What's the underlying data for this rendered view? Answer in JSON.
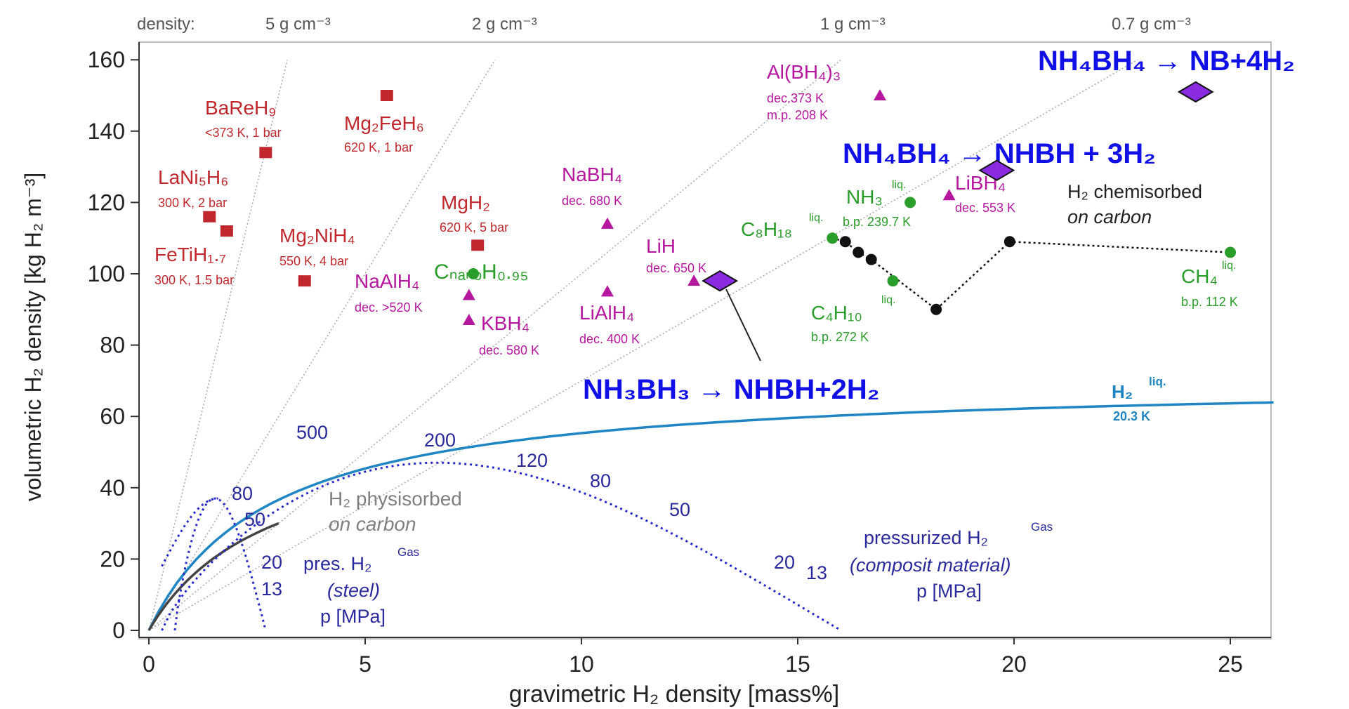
{
  "chart_data": {
    "type": "scatter",
    "xlabel": "gravimetric H₂ density [mass%]",
    "ylabel": "volumetric H₂ density [kg H₂ m⁻³]",
    "xlim": [
      0,
      26
    ],
    "ylim": [
      0,
      160
    ],
    "x_ticks": [
      "0",
      "5",
      "10",
      "15",
      "20",
      "25"
    ],
    "y_ticks": [
      "0",
      "20",
      "40",
      "60",
      "80",
      "100",
      "120",
      "140",
      "160"
    ],
    "density_header": "density:",
    "density_lines": [
      {
        "label": "5 g cm⁻³",
        "density": 5
      },
      {
        "label": "2 g cm⁻³",
        "density": 2
      },
      {
        "label": "1 g cm⁻³",
        "density": 1
      },
      {
        "label": "0.7 g cm⁻³",
        "density": 0.7
      }
    ],
    "series": [
      {
        "marker": "square",
        "color": "#c0282d",
        "points": [
          {
            "label": "BaReH₉",
            "note": "<373 K, 1 bar",
            "x": 2.7,
            "y": 134
          },
          {
            "label": "Mg₂FeH₆",
            "note": "620 K, 1 bar",
            "x": 5.5,
            "y": 150
          },
          {
            "label": "LaNi₅H₆",
            "note": "300 K, 2 bar",
            "x": 1.4,
            "y": 116
          },
          {
            "label": "FeTiH₁.₇",
            "note": "300 K, 1.5 bar",
            "x": 1.8,
            "y": 112
          },
          {
            "label": "Mg₂NiH₄",
            "note": "550 K, 4 bar",
            "x": 3.6,
            "y": 98
          },
          {
            "label": "MgH₂",
            "note": "620 K, 5 bar",
            "x": 7.6,
            "y": 108
          }
        ]
      },
      {
        "marker": "triangle",
        "color": "#b5179e",
        "points": [
          {
            "label": "Al(BH₄)₃",
            "note": "dec.373 K",
            "note2": "m.p. 208 K",
            "x": 16.9,
            "y": 150
          },
          {
            "label": "NaBH₄",
            "note": "dec. 680 K",
            "x": 10.6,
            "y": 114
          },
          {
            "label": "LiBH₄",
            "note": "dec. 553 K",
            "x": 18.5,
            "y": 122
          },
          {
            "label": "LiH",
            "note": "dec. 650 K",
            "x": 12.6,
            "y": 98
          },
          {
            "label": "NaAlH₄",
            "note": "dec. >520 K",
            "x": 7.4,
            "y": 94
          },
          {
            "label": "KBH₄",
            "note": "dec. 580 K",
            "x": 7.4,
            "y": 87
          },
          {
            "label": "LiAlH₄",
            "note": "dec. 400 K",
            "x": 10.6,
            "y": 95
          }
        ]
      },
      {
        "marker": "circle",
        "color": "#2a9d2a",
        "points": [
          {
            "label": "CₙₐₙₒH₀.₉₅",
            "x": 7.5,
            "y": 100
          },
          {
            "label": "C₈H₁₈",
            "sup": "liq.",
            "x": 15.8,
            "y": 110
          },
          {
            "label": "NH₃",
            "sup": "liq.",
            "note": "b.p. 239.7 K",
            "x": 17.6,
            "y": 120
          },
          {
            "label": "C₄H₁₀",
            "sup": "liq.",
            "note": "b.p. 272 K",
            "x": 17.2,
            "y": 98
          },
          {
            "label": "CH₄",
            "sup": "liq.",
            "note": "b.p. 112 K",
            "x": 25,
            "y": 106
          }
        ]
      },
      {
        "marker": "circle",
        "color": "#111111",
        "name": "H₂ chemisorbed on carbon",
        "points": [
          {
            "x": 16.1,
            "y": 109
          },
          {
            "x": 16.4,
            "y": 106
          },
          {
            "x": 16.7,
            "y": 104
          },
          {
            "x": 18.2,
            "y": 90
          },
          {
            "x": 19.9,
            "y": 109
          }
        ]
      },
      {
        "marker": "diamond",
        "color": "#8a2be2",
        "points": [
          {
            "label": "NH₄BH₄ → NB+4H₂",
            "x": 24.2,
            "y": 151
          },
          {
            "label": "NH₄BH₄ → NHBH + 3H₂",
            "x": 19.6,
            "y": 129
          },
          {
            "label": "NH₃BH₃ → NHBH+2H₂",
            "x": 13.2,
            "y": 98
          }
        ]
      }
    ],
    "annotations": {
      "h2_chem_1": "H₂ chemisorbed",
      "h2_chem_2": "on carbon",
      "h2_phys_1": "H₂ physisorbed",
      "h2_phys_2": "on carbon",
      "h2_liq": "H₂",
      "h2_liq_sup": "liq.",
      "h2_liq_note": "20.3 K",
      "pres_steel_1": "pres. H₂",
      "pres_steel_sup": "Gas",
      "pres_steel_2": "(steel)",
      "pres_steel_3": "p [MPa]",
      "pres_comp_1": "pressurized H₂",
      "pres_comp_sup": "Gas",
      "pres_comp_2": "(composit material)",
      "pres_comp_3": "p [MPa]",
      "steel_pressure_labels": [
        "80",
        "50",
        "20",
        "13"
      ],
      "comp_pressure_labels": [
        "500",
        "200",
        "120",
        "80",
        "50",
        "20",
        "13"
      ]
    }
  }
}
